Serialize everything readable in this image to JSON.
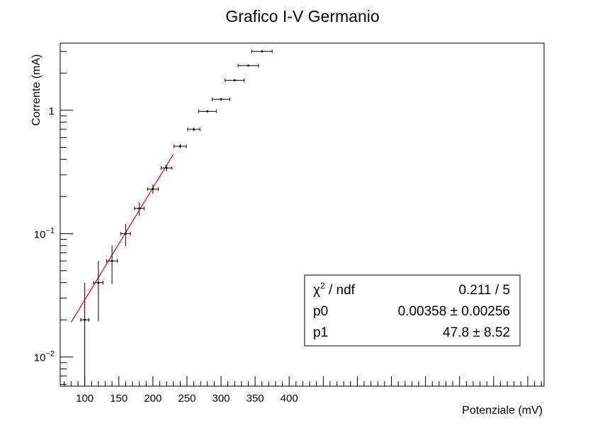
{
  "chart_data": {
    "type": "scatter",
    "title": "Grafico I-V Germanio",
    "xlabel": "Potenziale (mV)",
    "ylabel": "Corrente (mA)",
    "xlim": [
      64,
      774
    ],
    "ylim": [
      0.0058,
      3.5
    ],
    "yscale": "log",
    "grid": false,
    "x_ticks": [
      100,
      150,
      200,
      250,
      300,
      350,
      400
    ],
    "y_ticks": [
      {
        "value": 0.01,
        "base": "10",
        "exp": "−2"
      },
      {
        "value": 0.1,
        "base": "10",
        "exp": "−1"
      },
      {
        "value": 1,
        "base": "1",
        "exp": ""
      }
    ],
    "series": [
      {
        "points": [
          {
            "x": 100,
            "y": 0.02,
            "xerr": 6,
            "ylow": 0.0055,
            "yhigh": 0.04
          },
          {
            "x": 120,
            "y": 0.04,
            "xerr": 7,
            "ylow": 0.0195,
            "yhigh": 0.06
          },
          {
            "x": 140,
            "y": 0.06,
            "xerr": 8,
            "ylow": 0.039,
            "yhigh": 0.08
          },
          {
            "x": 160,
            "y": 0.1,
            "xerr": 7,
            "ylow": 0.079,
            "yhigh": 0.12
          },
          {
            "x": 180,
            "y": 0.16,
            "xerr": 7,
            "ylow": 0.14,
            "yhigh": 0.18
          },
          {
            "x": 200,
            "y": 0.23,
            "xerr": 8,
            "ylow": 0.21,
            "yhigh": 0.25
          },
          {
            "x": 220,
            "y": 0.34,
            "xerr": 8,
            "ylow": 0.32,
            "yhigh": 0.36
          },
          {
            "x": 240,
            "y": 0.51,
            "xerr": 9,
            "ylow": 0.49,
            "yhigh": 0.53
          },
          {
            "x": 260,
            "y": 0.7,
            "xerr": 9,
            "ylow": 0.68,
            "yhigh": 0.72
          },
          {
            "x": 280,
            "y": 0.98,
            "xerr": 13,
            "ylow": 0.96,
            "yhigh": 1.0
          },
          {
            "x": 300,
            "y": 1.23,
            "xerr": 13,
            "ylow": 1.2,
            "yhigh": 1.26
          },
          {
            "x": 320,
            "y": 1.75,
            "xerr": 14,
            "ylow": 1.72,
            "yhigh": 1.78
          },
          {
            "x": 340,
            "y": 2.3,
            "xerr": 15,
            "ylow": 2.27,
            "yhigh": 2.33
          },
          {
            "x": 360,
            "y": 3.0,
            "xerr": 15,
            "ylow": 2.96,
            "yhigh": 3.04
          }
        ]
      }
    ],
    "fit": {
      "function": "exponential",
      "p0": 0.00358,
      "p1": 47.8,
      "x_range": [
        80,
        230
      ],
      "color": "#e8141b"
    },
    "stats_box": {
      "position": "bottom-right",
      "rows": [
        {
          "label_main": "χ",
          "label_sup": "2",
          "label_rest": " / ndf",
          "value": "0.211 / 5"
        },
        {
          "label_main": "p0",
          "label_sup": "",
          "label_rest": "",
          "value": "0.00358 ± 0.00256"
        },
        {
          "label_main": "p1",
          "label_sup": "",
          "label_rest": "",
          "value": "47.8 ± 8.52"
        }
      ]
    }
  }
}
